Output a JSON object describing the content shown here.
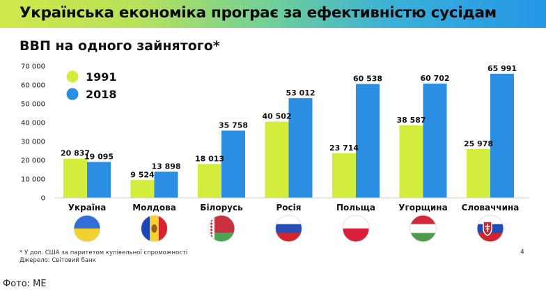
{
  "banner": {
    "title": "Українська економіка програє за ефективністю сусідам"
  },
  "chart_data": {
    "type": "bar",
    "title": "ВВП на одного зайнятого*",
    "categories": [
      "Україна",
      "Молдова",
      "Білорусь",
      "Росія",
      "Польща",
      "Угорщина",
      "Словаччина"
    ],
    "series": [
      {
        "name": "1991",
        "color": "#d4ec3b",
        "values": [
          20837,
          9524,
          18013,
          40502,
          23714,
          38587,
          25978
        ]
      },
      {
        "name": "2018",
        "color": "#2a8ee2",
        "values": [
          19095,
          13898,
          35758,
          53012,
          60538,
          60702,
          65991
        ]
      }
    ],
    "value_labels": {
      "1991": [
        "20 837",
        "9 524",
        "18 013",
        "40 502",
        "23 714",
        "38 587",
        "25 978"
      ],
      "2018": [
        "19 095",
        "13 898",
        "35 758",
        "53 012",
        "60 538",
        "60 702",
        "65 991"
      ]
    },
    "yticks": [
      0,
      10000,
      20000,
      30000,
      40000,
      50000,
      60000,
      70000
    ],
    "ytick_labels": [
      "0",
      "10 000",
      "20 000",
      "30 000",
      "40 000",
      "50 000",
      "60 000",
      "70 000"
    ],
    "ylim": [
      0,
      70000
    ],
    "xlabel": "",
    "ylabel": "",
    "grid": false,
    "legend": {
      "placement": "top-left",
      "entries": [
        "1991",
        "2018"
      ]
    },
    "flags": [
      "ukraine-flag",
      "moldova-flag",
      "belarus-flag",
      "russia-flag",
      "poland-flag",
      "hungary-flag",
      "slovakia-flag"
    ]
  },
  "footnote": {
    "line1": "* У дол. США за паритетом купівельної спроможності",
    "line2": "Джерело: Світовий банк"
  },
  "page_number": "4",
  "caption": "Фото: МЕ"
}
